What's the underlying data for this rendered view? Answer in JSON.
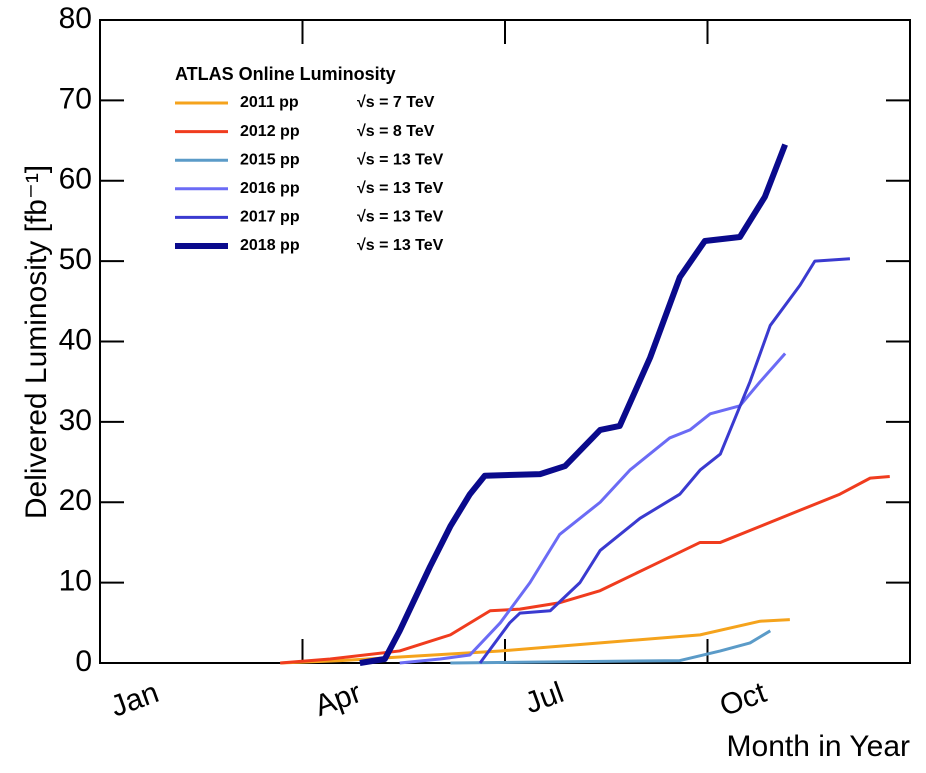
{
  "chart_data": {
    "type": "line",
    "legend_title": "ATLAS Online Luminosity",
    "y_label": "Delivered Luminosity [fb⁻¹]",
    "x_label": "Month in Year",
    "xlim": [
      1,
      13
    ],
    "xticks": [
      {
        "value": 1,
        "label": "Jan"
      },
      {
        "value": 4,
        "label": "Apr"
      },
      {
        "value": 7,
        "label": "Jul"
      },
      {
        "value": 10,
        "label": "Oct"
      }
    ],
    "ylim": [
      0,
      80
    ],
    "yticks": [
      0,
      10,
      20,
      30,
      40,
      50,
      60,
      70,
      80
    ],
    "legend": "upper left",
    "series": [
      {
        "name": "2011 pp",
        "energy": "√s = 7 TeV",
        "color": "#f5a31c",
        "width": 3,
        "x": [
          3.67,
          4.56,
          6.93,
          8.41,
          9.89,
          10.78,
          11.22
        ],
        "values": [
          0,
          0.3,
          1.5,
          2.5,
          3.5,
          5.2,
          5.4
        ]
      },
      {
        "name": "2012 pp",
        "energy": "√s = 8 TeV",
        "color": "#f03c1e",
        "width": 3,
        "x": [
          3.67,
          4.41,
          5.44,
          6.19,
          6.78,
          7.22,
          7.81,
          8.41,
          9.15,
          9.89,
          10.19,
          10.78,
          11.37,
          11.96,
          12.41,
          12.7
        ],
        "values": [
          0,
          0.5,
          1.5,
          3.5,
          6.5,
          6.7,
          7.5,
          9,
          12,
          15,
          15,
          17,
          19,
          21,
          23,
          23.2
        ]
      },
      {
        "name": "2015 pp",
        "energy": "√s = 13 TeV",
        "color": "#5b9bc8",
        "width": 3,
        "x": [
          6.19,
          9.59,
          10.19,
          10.63,
          10.93
        ],
        "values": [
          0,
          0.3,
          1.5,
          2.5,
          4
        ]
      },
      {
        "name": "2016 pp",
        "energy": "√s = 13 TeV",
        "color": "#6b6bf5",
        "width": 3,
        "x": [
          5.44,
          6.04,
          6.48,
          6.93,
          7.37,
          7.81,
          8.41,
          8.85,
          9.44,
          9.74,
          10.04,
          10.48,
          10.78,
          11.15
        ],
        "values": [
          0,
          0.5,
          1,
          5,
          10,
          16,
          20,
          24,
          28,
          29,
          31,
          32,
          35,
          38.5
        ]
      },
      {
        "name": "2017 pp",
        "energy": "√s = 13 TeV",
        "color": "#3a3ad0",
        "width": 3,
        "x": [
          6.63,
          7.07,
          7.22,
          7.67,
          8.11,
          8.41,
          9.0,
          9.59,
          9.89,
          10.19,
          10.63,
          10.93,
          11.37,
          11.59,
          12.11
        ],
        "values": [
          0,
          5,
          6.2,
          6.5,
          10,
          14,
          18,
          21,
          24,
          26,
          35,
          42,
          47,
          50,
          50.3
        ]
      },
      {
        "name": "2018 pp",
        "energy": "√s = 13 TeV",
        "color": "#0a0a8c",
        "width": 6,
        "x": [
          4.85,
          5.22,
          5.44,
          5.89,
          6.19,
          6.48,
          6.7,
          7.52,
          7.89,
          8.41,
          8.7,
          9.15,
          9.59,
          9.96,
          10.48,
          10.85,
          11.15
        ],
        "values": [
          0,
          0.5,
          4,
          12,
          17,
          21,
          23.3,
          23.5,
          24.5,
          29,
          29.5,
          38,
          48,
          52.5,
          53,
          58,
          64.5
        ]
      }
    ]
  }
}
